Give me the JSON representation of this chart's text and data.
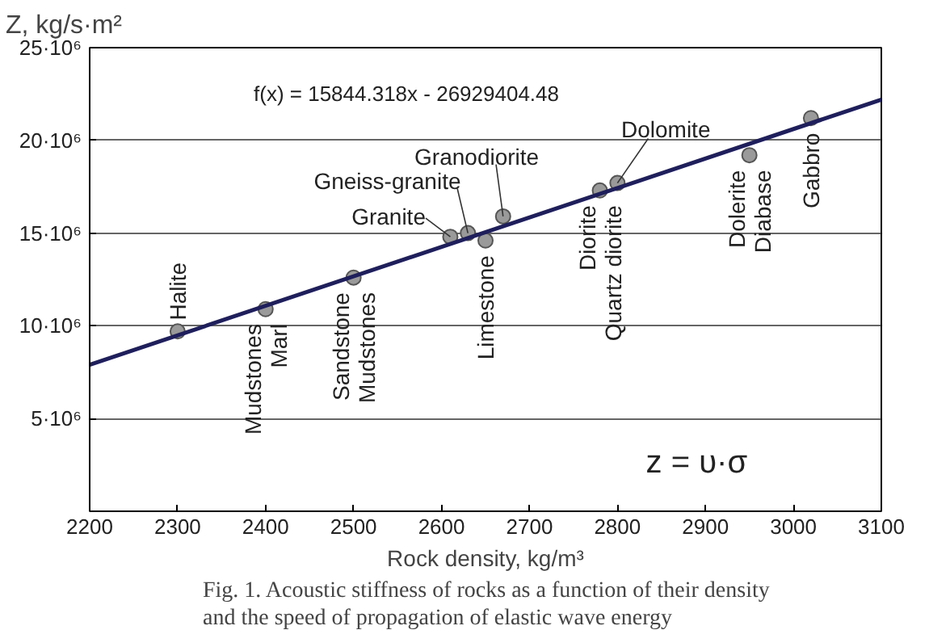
{
  "chart_data": {
    "type": "scatter",
    "ylabel": "Z, kg/s·m²",
    "xlabel": "Rock density, kg/m³",
    "x": [
      2300,
      2400,
      2500,
      2610,
      2630,
      2650,
      2670,
      2780,
      2800,
      2950,
      3020
    ],
    "series": [
      {
        "color": "#9a9a9a",
        "marker": "circle",
        "values": [
          9700000,
          10900000,
          12600000,
          14800000,
          15000000,
          14600000,
          15900000,
          17300000,
          17700000,
          19200000,
          21200000
        ]
      },
      {
        "type": "line",
        "color": "#1f1f5c",
        "x": [
          2200,
          3100
        ],
        "values": [
          7900000,
          22200000
        ]
      }
    ],
    "grid": "y",
    "xlim": [
      2200,
      3100
    ],
    "xticks": [
      2200,
      2300,
      2400,
      2500,
      2600,
      2700,
      2800,
      2900,
      3000,
      3100
    ],
    "ylim": [
      0,
      25000000
    ],
    "yticks": [
      {
        "value": 0,
        "label": null
      },
      {
        "value": 5000000,
        "label": "5·10⁶"
      },
      {
        "value": 10000000,
        "label": "10·10⁶"
      },
      {
        "value": 15000000,
        "label": "15·10⁶"
      },
      {
        "value": 20000000,
        "label": "20·10⁶"
      },
      {
        "value": 25000000,
        "label": "25·10⁶"
      }
    ],
    "annotations": [
      "f(x) = 15844.318x - 26929404.48",
      "z = υ·σ",
      "Fig. 1. Acoustic stiffness of rocks as a function of their density\nand the speed of propagation of elastic wave energy",
      {
        "text": "Halite",
        "x": 2300,
        "y": 9700000
      },
      {
        "text": "Mudstones\nMarl",
        "x": 2400,
        "y": 10900000
      },
      {
        "text": "Sandstone\nMudstones",
        "x": 2500,
        "y": 12600000
      },
      {
        "text": "Granite",
        "x": 2610,
        "y": 14800000
      },
      {
        "text": "Gneiss-granite",
        "x": 2630,
        "y": 15000000
      },
      {
        "text": "Limestone",
        "x": 2650,
        "y": 14600000
      },
      {
        "text": "Granodiorite",
        "x": 2670,
        "y": 15900000
      },
      {
        "text": "Diorite\nQuartz diorite",
        "x": 2780,
        "y": 17300000
      },
      {
        "text": "Dolomite",
        "x": 2800,
        "y": 17700000
      },
      {
        "text": "Dolerite\nDiabase",
        "x": 2950,
        "y": 19200000
      },
      {
        "text": "Gabbro",
        "x": 3020,
        "y": 21200000
      }
    ]
  }
}
